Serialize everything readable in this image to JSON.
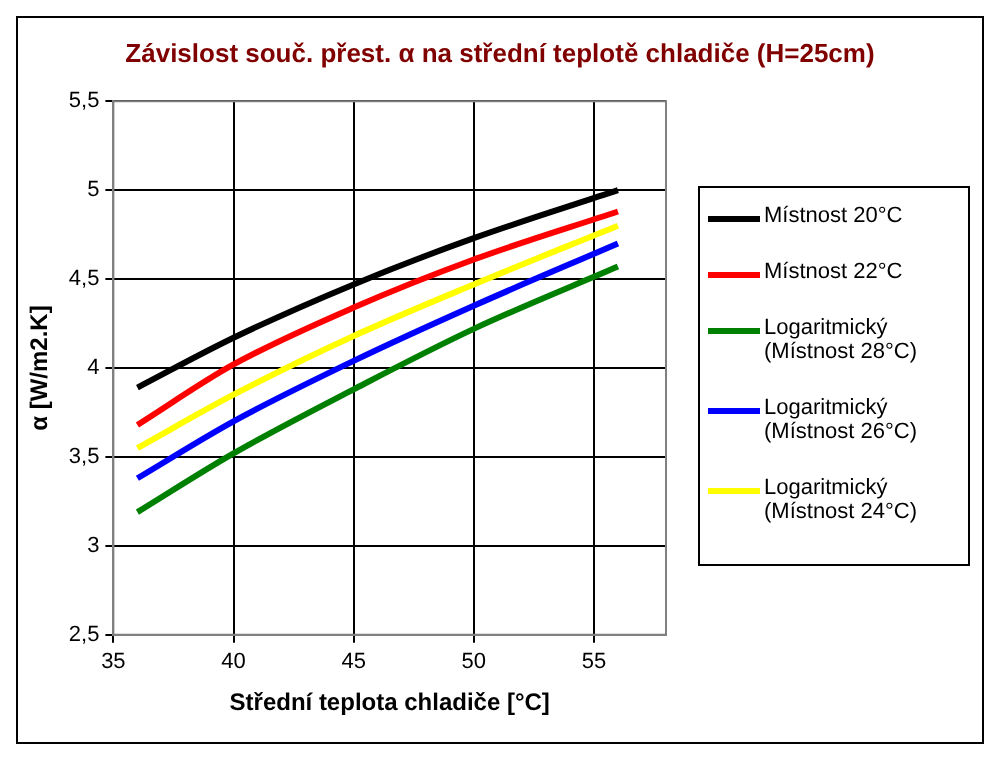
{
  "chart_data": {
    "type": "line",
    "title": "Závislost souč. přest. α na střední teplotě chladiče (H=25cm)",
    "xlabel": "Střední teplota chladiče [°C]",
    "ylabel": "α [W/m2.K]",
    "x": [
      36,
      40,
      45,
      50,
      56
    ],
    "series": [
      {
        "name": "Místnost 20°C",
        "color": "#000000",
        "values": [
          3.89,
          4.17,
          4.47,
          4.73,
          5.0
        ]
      },
      {
        "name": "Místnost 22°C",
        "color": "#ff0000",
        "values": [
          3.68,
          4.02,
          4.34,
          4.61,
          4.88
        ]
      },
      {
        "name": "Logaritmický (Místnost 28°C)",
        "color": "#008000",
        "values": [
          3.19,
          3.52,
          3.88,
          4.22,
          4.57
        ]
      },
      {
        "name": "Logaritmický (Místnost 26°C)",
        "color": "#0000ff",
        "values": [
          3.38,
          3.7,
          4.04,
          4.35,
          4.7
        ]
      },
      {
        "name": "Logaritmický (Místnost 24°C)",
        "color": "#ffff00",
        "values": [
          3.55,
          3.85,
          4.18,
          4.47,
          4.8
        ]
      }
    ],
    "xlim": [
      35,
      58
    ],
    "xticks": [
      35,
      40,
      45,
      50,
      55
    ],
    "ylim": [
      2.5,
      5.5
    ],
    "yticks": [
      {
        "value": 2.5,
        "label": "2,5"
      },
      3,
      {
        "value": 3.5,
        "label": "3,5"
      },
      4,
      {
        "value": 4.5,
        "label": "4,5"
      },
      5,
      {
        "value": 5.5,
        "label": "5,5"
      }
    ],
    "grid": true,
    "legend": "right",
    "marker": "none",
    "line_style": "solid"
  }
}
